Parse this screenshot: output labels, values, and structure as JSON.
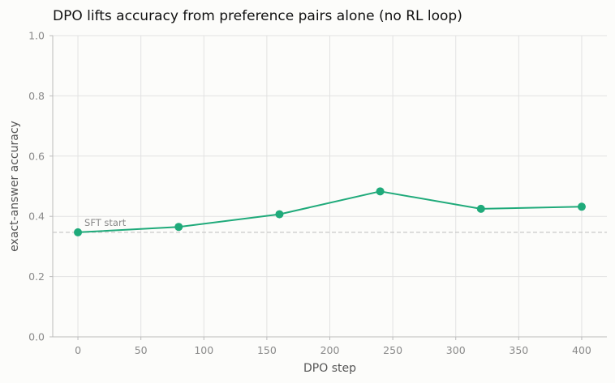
{
  "chart_data": {
    "type": "line",
    "title": "DPO lifts accuracy from preference pairs alone (no RL loop)",
    "xlabel": "DPO step",
    "ylabel": "exact-answer accuracy",
    "xlim": [
      -20,
      420
    ],
    "ylim": [
      0,
      1
    ],
    "xticks": [
      0,
      50,
      100,
      150,
      200,
      250,
      300,
      350,
      400
    ],
    "yticks": [
      0.0,
      0.2,
      0.4,
      0.6,
      0.8,
      1.0
    ],
    "grid": true,
    "series": [
      {
        "x": [
          0,
          80,
          160,
          240,
          320,
          400
        ],
        "values": [
          0.347,
          0.365,
          0.407,
          0.483,
          0.425,
          0.432
        ],
        "color": "#1faa7a",
        "markers": true
      }
    ],
    "reference_lines": [
      {
        "y": 0.347,
        "label": "SFT start",
        "style": "dashed",
        "color": "#c4c4c4"
      }
    ]
  }
}
